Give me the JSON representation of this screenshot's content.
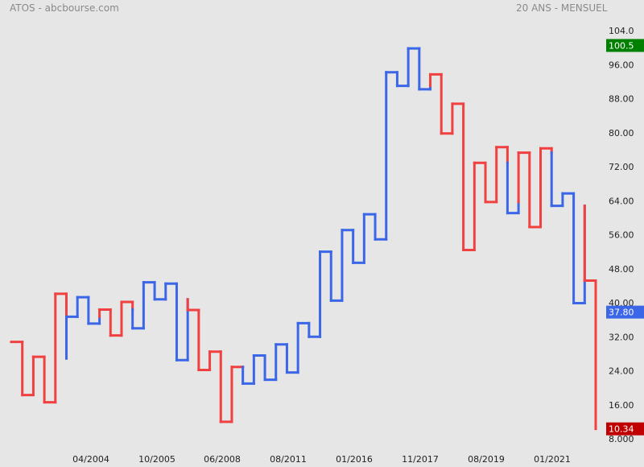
{
  "header": {
    "title": "ATOS - abcbourse.com",
    "period": "20 ANS - MENSUEL"
  },
  "colors": {
    "up": "#3b66e8",
    "down": "#f04040",
    "high_badge": "#008000",
    "last_badge": "#3b66e8",
    "low_badge": "#c00000",
    "background": "#e6e6e6"
  },
  "chart_data": {
    "type": "line",
    "style": "kagi",
    "y_axis_labels": [
      "104.0",
      "96.00",
      "88.00",
      "80.00",
      "72.00",
      "64.00",
      "56.00",
      "48.00",
      "40.00",
      "32.00",
      "24.00",
      "16.00",
      "8.000"
    ],
    "x_axis_labels": [
      "04/2004",
      "10/2005",
      "06/2008",
      "08/2011",
      "01/2016",
      "11/2017",
      "08/2019",
      "01/2021"
    ],
    "ylim": [
      8,
      104
    ],
    "grid": false,
    "levels": [
      30.8,
      18.3,
      27.3,
      16.6,
      42.1,
      36.7,
      41.3,
      35.1,
      38.4,
      32.3,
      40.2,
      34.0,
      44.8,
      40.8,
      44.5,
      26.5,
      38.3,
      24.2,
      28.5,
      12.0,
      24.9,
      21.0,
      27.6,
      21.9,
      30.2,
      23.6,
      35.2,
      32.0,
      52.0,
      40.5,
      57.1,
      49.4,
      60.8,
      54.9,
      94.2,
      91.0,
      99.8,
      90.2,
      93.7,
      79.8,
      86.8,
      52.4,
      72.9,
      63.7,
      76.6,
      61.1,
      75.3,
      57.8,
      76.3,
      62.8,
      65.7,
      39.9,
      45.2,
      10.34
    ],
    "color_changes": [
      {
        "segment": 4,
        "level": 26.9,
        "to": "up"
      },
      {
        "segment": 7,
        "level": 36.7,
        "to": "down"
      },
      {
        "segment": 10,
        "level": 38.4,
        "to": "up"
      },
      {
        "segment": 15,
        "level": 40.8,
        "to": "down"
      },
      {
        "segment": 20,
        "level": 24.9,
        "to": "up"
      },
      {
        "segment": 37,
        "level": 91.0,
        "to": "down"
      },
      {
        "segment": 44,
        "level": 72.9,
        "to": "up"
      },
      {
        "segment": 45,
        "level": 63.7,
        "to": "down"
      },
      {
        "segment": 48,
        "level": 75.3,
        "to": "up"
      },
      {
        "segment": 51,
        "level": 62.8,
        "to": "down"
      }
    ],
    "price_badges": {
      "high": "100.5",
      "last": "37.80",
      "low": "10.34"
    }
  }
}
